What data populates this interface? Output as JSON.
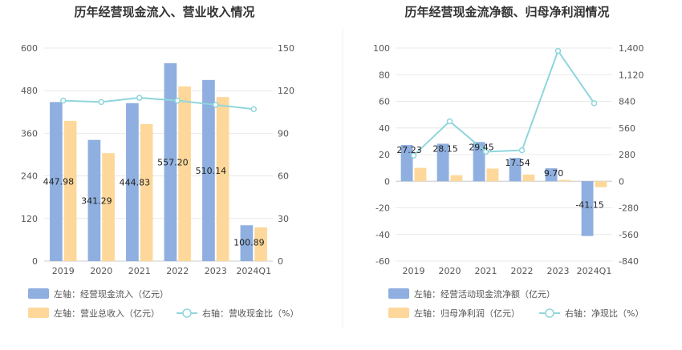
{
  "chart_data": [
    {
      "type": "bar",
      "title": "历年经营现金流入、营业收入情况",
      "categories": [
        "2019",
        "2020",
        "2021",
        "2022",
        "2023",
        "2024Q1"
      ],
      "series": [
        {
          "name": "左轴：经营现金流入（亿元）",
          "axis": "left",
          "type": "bar",
          "color": "#8eafdf",
          "values": [
            447.98,
            341.29,
            444.83,
            557.2,
            510.14,
            100.89
          ],
          "labels": [
            "447.98",
            "341.29",
            "444.83",
            "557.20",
            "510.14",
            "100.89"
          ]
        },
        {
          "name": "左轴：营业总收入（亿元）",
          "axis": "left",
          "type": "bar",
          "color": "#fdd89a",
          "values": [
            395,
            304,
            386,
            492,
            462,
            95
          ]
        },
        {
          "name": "右轴：营收现金比（%）",
          "axis": "right",
          "type": "line",
          "color": "#8fd6dc",
          "values": [
            113,
            112,
            115,
            113,
            110,
            107
          ]
        }
      ],
      "left_axis": {
        "min": 0,
        "max": 600,
        "ticks": [
          "0",
          "120",
          "240",
          "360",
          "480",
          "600"
        ]
      },
      "right_axis": {
        "min": 0,
        "max": 150,
        "ticks": [
          "0",
          "30",
          "60",
          "90",
          "120",
          "150"
        ]
      },
      "grid": true,
      "legend_position": "bottom"
    },
    {
      "type": "bar",
      "title": "历年经营现金流净额、归母净利润情况",
      "categories": [
        "2019",
        "2020",
        "2021",
        "2022",
        "2023",
        "2024Q1"
      ],
      "series": [
        {
          "name": "左轴：经营活动现金流净额（亿元）",
          "axis": "left",
          "type": "bar",
          "color": "#8eafdf",
          "values": [
            27.23,
            28.15,
            29.45,
            17.54,
            9.7,
            -41.15
          ],
          "labels": [
            "27.23",
            "28.15",
            "29.45",
            "17.54",
            "9.70",
            "-41.15"
          ]
        },
        {
          "name": "左轴：归母净利润（亿元）",
          "axis": "left",
          "type": "bar",
          "color": "#fdd89a",
          "values": [
            10,
            4.5,
            9.5,
            5,
            1,
            -4.5
          ]
        },
        {
          "name": "右轴：净现比（%）",
          "axis": "right",
          "type": "line",
          "color": "#8fd6dc",
          "values": [
            270,
            630,
            310,
            325,
            1370,
            820
          ]
        }
      ],
      "left_axis": {
        "min": -60,
        "max": 100,
        "ticks": [
          "100",
          "80",
          "60",
          "40",
          "20",
          "0",
          "-20",
          "-40",
          "-60"
        ]
      },
      "right_axis": {
        "min": -840,
        "max": 1400,
        "ticks": [
          "1,400",
          "1,120",
          "840",
          "560",
          "280",
          "0",
          "-280",
          "-560",
          "-840"
        ]
      },
      "grid": true,
      "legend_position": "bottom"
    }
  ]
}
